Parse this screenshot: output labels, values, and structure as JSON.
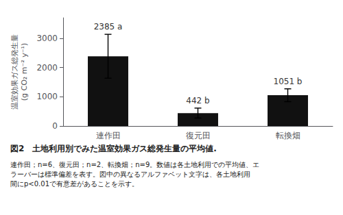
{
  "chart_data": {
    "type": "bar",
    "title": "図2　土地利用別でみた温室効果ガス総発生量の平均値.",
    "annotations": [
      "連作田；n=6、復元田；n=2、転換畑；n=9。数値は各土地利用での平均値、エ",
      "ラーバーは標準偏差を表す。図中の異なるアルファベット文字は、各土地利用",
      "間にp<0.01で有意差があることを示す。"
    ],
    "categories": [
      "連作田",
      "復元田",
      "転換畑"
    ],
    "values": [
      2385,
      442,
      1051
    ],
    "value_labels": [
      "2385 a",
      "442 b",
      "1051 b"
    ],
    "data_labels": true,
    "errors": [
      750,
      170,
      220
    ],
    "color": "#111111",
    "ylabel": "温室効果ガス総発生量\n(g CO₂ m⁻² y⁻¹)",
    "ylim": [
      0,
      3700
    ],
    "yticks": [
      0,
      1000,
      2000,
      3000
    ],
    "grid": false
  }
}
